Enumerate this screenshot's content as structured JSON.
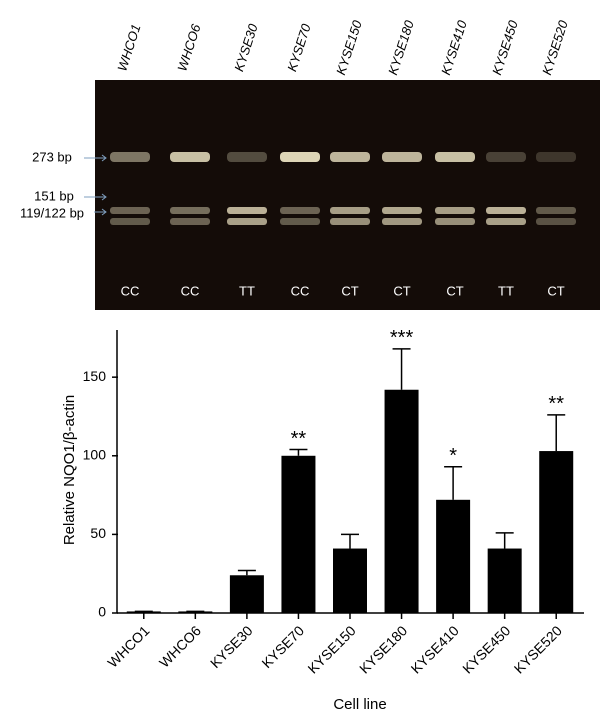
{
  "gel": {
    "lanes": [
      "WHCO1",
      "WHCO6",
      "KYSE30",
      "KYSE70",
      "KYSE150",
      "KYSE180",
      "KYSE410",
      "KYSE450",
      "KYSE520"
    ],
    "band_labels": [
      "273 bp",
      "151 bp",
      "119/122 bp"
    ],
    "genotypes": [
      "CC",
      "CC",
      "TT",
      "CC",
      "CT",
      "CT",
      "CT",
      "TT",
      "CT"
    ]
  },
  "chart_data": {
    "type": "bar",
    "x_label": "Cell line",
    "y_label": "Relative NQO1/β-actin",
    "categories": [
      "WHCO1",
      "WHCO6",
      "KYSE30",
      "KYSE70",
      "KYSE150",
      "KYSE180",
      "KYSE410",
      "KYSE450",
      "KYSE520"
    ],
    "values": [
      1,
      1,
      24,
      100,
      41,
      142,
      72,
      41,
      103
    ],
    "errors": [
      0,
      0,
      3,
      4,
      9,
      26,
      21,
      10,
      23
    ],
    "significance": [
      null,
      null,
      null,
      "**",
      null,
      "***",
      "*",
      null,
      "**"
    ],
    "color": "#000000",
    "ylim": [
      0,
      180
    ],
    "yticks": [
      0,
      50,
      100,
      150
    ],
    "grid": false
  }
}
